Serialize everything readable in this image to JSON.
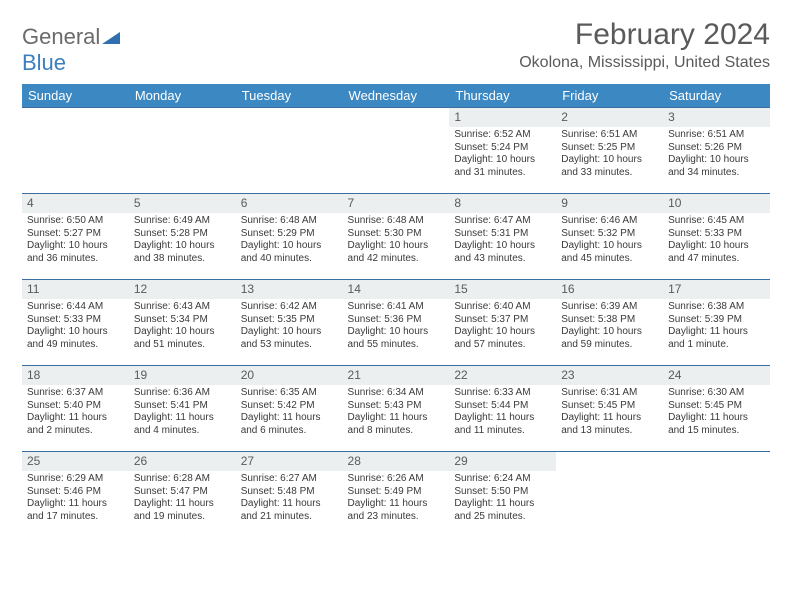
{
  "logo": {
    "part1": "General",
    "part2": "Blue"
  },
  "title": "February 2024",
  "location": "Okolona, Mississippi, United States",
  "colors": {
    "header_bg": "#3b88c3",
    "header_text": "#ffffff",
    "row_border": "#3b6ea0",
    "daynum_bg": "#eceff0",
    "text": "#3a3a3a",
    "accent": "#3b7fbf"
  },
  "weekdays": [
    "Sunday",
    "Monday",
    "Tuesday",
    "Wednesday",
    "Thursday",
    "Friday",
    "Saturday"
  ],
  "weeks": [
    [
      null,
      null,
      null,
      null,
      {
        "n": "1",
        "sr": "Sunrise: 6:52 AM",
        "ss": "Sunset: 5:24 PM",
        "dl": "Daylight: 10 hours and 31 minutes."
      },
      {
        "n": "2",
        "sr": "Sunrise: 6:51 AM",
        "ss": "Sunset: 5:25 PM",
        "dl": "Daylight: 10 hours and 33 minutes."
      },
      {
        "n": "3",
        "sr": "Sunrise: 6:51 AM",
        "ss": "Sunset: 5:26 PM",
        "dl": "Daylight: 10 hours and 34 minutes."
      }
    ],
    [
      {
        "n": "4",
        "sr": "Sunrise: 6:50 AM",
        "ss": "Sunset: 5:27 PM",
        "dl": "Daylight: 10 hours and 36 minutes."
      },
      {
        "n": "5",
        "sr": "Sunrise: 6:49 AM",
        "ss": "Sunset: 5:28 PM",
        "dl": "Daylight: 10 hours and 38 minutes."
      },
      {
        "n": "6",
        "sr": "Sunrise: 6:48 AM",
        "ss": "Sunset: 5:29 PM",
        "dl": "Daylight: 10 hours and 40 minutes."
      },
      {
        "n": "7",
        "sr": "Sunrise: 6:48 AM",
        "ss": "Sunset: 5:30 PM",
        "dl": "Daylight: 10 hours and 42 minutes."
      },
      {
        "n": "8",
        "sr": "Sunrise: 6:47 AM",
        "ss": "Sunset: 5:31 PM",
        "dl": "Daylight: 10 hours and 43 minutes."
      },
      {
        "n": "9",
        "sr": "Sunrise: 6:46 AM",
        "ss": "Sunset: 5:32 PM",
        "dl": "Daylight: 10 hours and 45 minutes."
      },
      {
        "n": "10",
        "sr": "Sunrise: 6:45 AM",
        "ss": "Sunset: 5:33 PM",
        "dl": "Daylight: 10 hours and 47 minutes."
      }
    ],
    [
      {
        "n": "11",
        "sr": "Sunrise: 6:44 AM",
        "ss": "Sunset: 5:33 PM",
        "dl": "Daylight: 10 hours and 49 minutes."
      },
      {
        "n": "12",
        "sr": "Sunrise: 6:43 AM",
        "ss": "Sunset: 5:34 PM",
        "dl": "Daylight: 10 hours and 51 minutes."
      },
      {
        "n": "13",
        "sr": "Sunrise: 6:42 AM",
        "ss": "Sunset: 5:35 PM",
        "dl": "Daylight: 10 hours and 53 minutes."
      },
      {
        "n": "14",
        "sr": "Sunrise: 6:41 AM",
        "ss": "Sunset: 5:36 PM",
        "dl": "Daylight: 10 hours and 55 minutes."
      },
      {
        "n": "15",
        "sr": "Sunrise: 6:40 AM",
        "ss": "Sunset: 5:37 PM",
        "dl": "Daylight: 10 hours and 57 minutes."
      },
      {
        "n": "16",
        "sr": "Sunrise: 6:39 AM",
        "ss": "Sunset: 5:38 PM",
        "dl": "Daylight: 10 hours and 59 minutes."
      },
      {
        "n": "17",
        "sr": "Sunrise: 6:38 AM",
        "ss": "Sunset: 5:39 PM",
        "dl": "Daylight: 11 hours and 1 minute."
      }
    ],
    [
      {
        "n": "18",
        "sr": "Sunrise: 6:37 AM",
        "ss": "Sunset: 5:40 PM",
        "dl": "Daylight: 11 hours and 2 minutes."
      },
      {
        "n": "19",
        "sr": "Sunrise: 6:36 AM",
        "ss": "Sunset: 5:41 PM",
        "dl": "Daylight: 11 hours and 4 minutes."
      },
      {
        "n": "20",
        "sr": "Sunrise: 6:35 AM",
        "ss": "Sunset: 5:42 PM",
        "dl": "Daylight: 11 hours and 6 minutes."
      },
      {
        "n": "21",
        "sr": "Sunrise: 6:34 AM",
        "ss": "Sunset: 5:43 PM",
        "dl": "Daylight: 11 hours and 8 minutes."
      },
      {
        "n": "22",
        "sr": "Sunrise: 6:33 AM",
        "ss": "Sunset: 5:44 PM",
        "dl": "Daylight: 11 hours and 11 minutes."
      },
      {
        "n": "23",
        "sr": "Sunrise: 6:31 AM",
        "ss": "Sunset: 5:45 PM",
        "dl": "Daylight: 11 hours and 13 minutes."
      },
      {
        "n": "24",
        "sr": "Sunrise: 6:30 AM",
        "ss": "Sunset: 5:45 PM",
        "dl": "Daylight: 11 hours and 15 minutes."
      }
    ],
    [
      {
        "n": "25",
        "sr": "Sunrise: 6:29 AM",
        "ss": "Sunset: 5:46 PM",
        "dl": "Daylight: 11 hours and 17 minutes."
      },
      {
        "n": "26",
        "sr": "Sunrise: 6:28 AM",
        "ss": "Sunset: 5:47 PM",
        "dl": "Daylight: 11 hours and 19 minutes."
      },
      {
        "n": "27",
        "sr": "Sunrise: 6:27 AM",
        "ss": "Sunset: 5:48 PM",
        "dl": "Daylight: 11 hours and 21 minutes."
      },
      {
        "n": "28",
        "sr": "Sunrise: 6:26 AM",
        "ss": "Sunset: 5:49 PM",
        "dl": "Daylight: 11 hours and 23 minutes."
      },
      {
        "n": "29",
        "sr": "Sunrise: 6:24 AM",
        "ss": "Sunset: 5:50 PM",
        "dl": "Daylight: 11 hours and 25 minutes."
      },
      null,
      null
    ]
  ]
}
